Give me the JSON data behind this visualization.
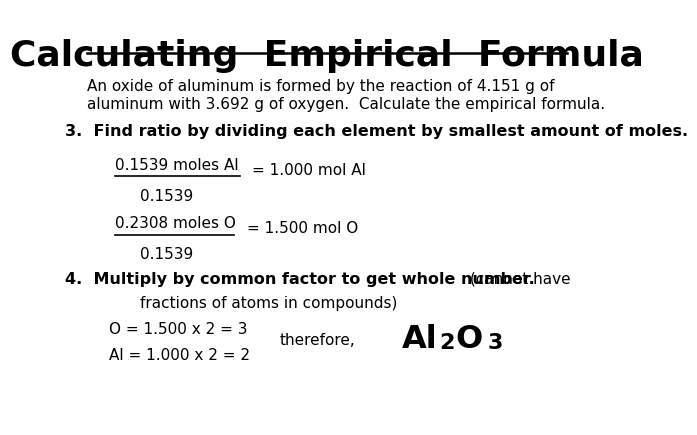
{
  "title": "Calculating  Empirical  Formula",
  "bg_color": "#ffffff",
  "text_color": "#000000",
  "intro_line1": "An oxide of aluminum is formed by the reaction of 4.151 g of",
  "intro_line2": "aluminum with 3.692 g of oxygen.  Calculate the empirical formula.",
  "step3_bold": "3.  Find ratio by dividing each element by smallest amount of moles.",
  "al_numerator": "0.1539 moles Al",
  "al_denominator": "0.1539",
  "al_result": "= 1.000 mol Al",
  "o_numerator": "0.2308 moles O",
  "o_denominator": "0.1539",
  "o_result": "= 1.500 mol O",
  "step4_bold": "4.  Multiply by common factor to get whole number.",
  "step4_normal": " (cannot have",
  "step4_line2": "fractions of atoms in compounds)",
  "calc_line1": "O = 1.500 x 2 = 3",
  "calc_line2": "Al = 1.000 x 2 = 2",
  "therefore": "therefore,",
  "formula_al": "Al",
  "formula_sub2": "2",
  "formula_o": "O",
  "formula_sub3": "3"
}
